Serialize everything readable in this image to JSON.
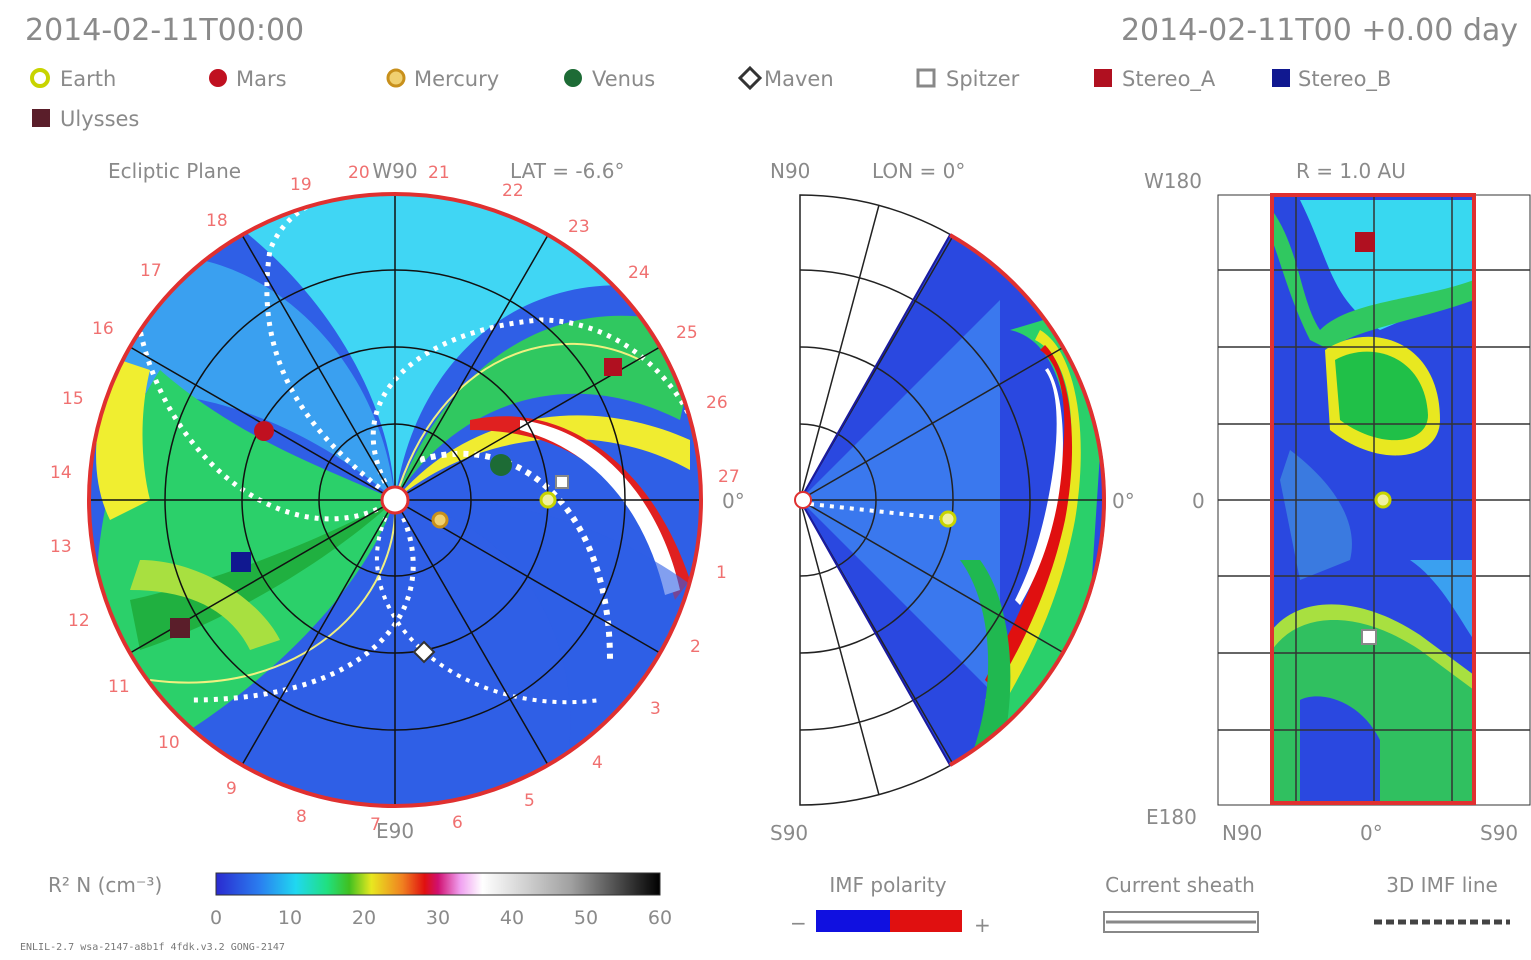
{
  "header": {
    "left_time": "2014-02-11T00:00",
    "right_time": "2014-02-11T00 +0.00 day"
  },
  "legend": {
    "items": [
      {
        "label": "Earth",
        "shape": "circle-outline",
        "color": "#c8d400"
      },
      {
        "label": "Mars",
        "shape": "circle",
        "color": "#c01020"
      },
      {
        "label": "Mercury",
        "shape": "circle-outline",
        "color": "#c8901c"
      },
      {
        "label": "Venus",
        "shape": "circle",
        "color": "#1d6b35"
      },
      {
        "label": "Maven",
        "shape": "diamond-outline",
        "color": "#333333"
      },
      {
        "label": "Spitzer",
        "shape": "square-outline",
        "color": "#888888"
      },
      {
        "label": "Stereo_A",
        "shape": "square",
        "color": "#b01020"
      },
      {
        "label": "Stereo_B",
        "shape": "square",
        "color": "#101890"
      },
      {
        "label": "Ulysses",
        "shape": "square",
        "color": "#5a1e2a"
      }
    ]
  },
  "panels": {
    "ecliptic": {
      "title": "Ecliptic Plane",
      "lat": "LAT = -6.6°",
      "top": "W90",
      "bottom": "E90",
      "right": "0°",
      "sector_numbers": [
        "19",
        "20",
        "21",
        "22",
        "23",
        "24",
        "25",
        "26",
        "27",
        "1",
        "2",
        "3",
        "4",
        "5",
        "6",
        "7",
        "8",
        "9",
        "10",
        "11",
        "12",
        "13",
        "14",
        "15",
        "16",
        "17",
        "18"
      ]
    },
    "meridional": {
      "top": "N90",
      "lon": "LON = 0°",
      "bottom": "S90",
      "right": "0°"
    },
    "shell": {
      "top": "W180",
      "title": "R = 1.0 AU",
      "middle": "0",
      "bottom": "E180",
      "x_left": "N90",
      "x_mid": "0°",
      "x_right": "S90"
    }
  },
  "colorbar": {
    "label": "R² N (cm⁻³)",
    "ticks": [
      "0",
      "10",
      "20",
      "30",
      "40",
      "50",
      "60"
    ],
    "min": 0,
    "max": 60
  },
  "imf": {
    "title": "IMF polarity",
    "minus": "−",
    "plus": "+",
    "neg_color": "#1010e0",
    "pos_color": "#e01010"
  },
  "current_sheath": {
    "title": "Current sheath"
  },
  "imf_line": {
    "title": "3D IMF line"
  },
  "footer": {
    "model": "ENLIL-2.7 wsa-2147-a8b1f 4fdk.v3.2 GONG-2147"
  }
}
